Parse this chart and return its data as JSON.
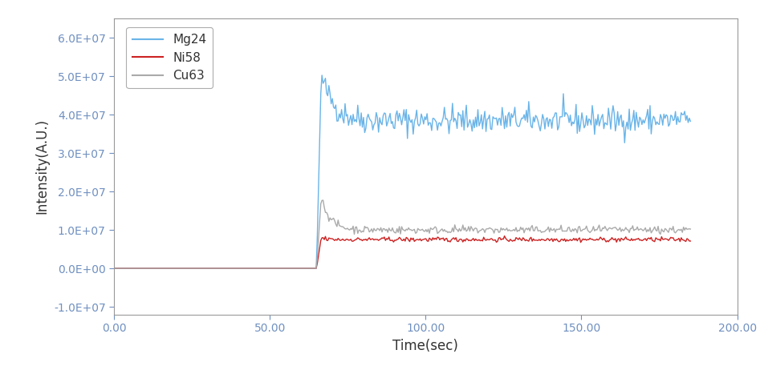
{
  "title": "",
  "xlabel": "Time(sec)",
  "ylabel": "Intensity(A.U.)",
  "xlim": [
    0,
    200
  ],
  "ylim": [
    -12000000.0,
    65000000.0
  ],
  "xticks": [
    0.0,
    50.0,
    100.0,
    150.0,
    200.0
  ],
  "xtick_labels": [
    "0.00",
    "50.00",
    "100.00",
    "150.00",
    "200.00"
  ],
  "yticks": [
    -10000000.0,
    0,
    10000000.0,
    20000000.0,
    30000000.0,
    40000000.0,
    50000000.0,
    60000000.0
  ],
  "ytick_labels": [
    "-1.0E+07",
    "0.0E+00",
    "1.0E+07",
    "2.0E+07",
    "3.0E+07",
    "4.0E+07",
    "5.0E+07",
    "6.0E+07"
  ],
  "legend_labels": [
    "Mg24",
    "Ni58",
    "Cu63"
  ],
  "line_colors": [
    "#6ab4e8",
    "#cc2222",
    "#aaaaaa"
  ],
  "laser_on_time": 65.0,
  "data_end_time": 185.0,
  "noise_seed": 42,
  "mg24_baseline": 0,
  "mg24_peak": 50000000.0,
  "mg24_steady": 38500000.0,
  "ni58_baseline": 0,
  "ni58_peak": 8000000.0,
  "ni58_steady": 7500000.0,
  "cu63_baseline": 0,
  "cu63_peak": 18500000.0,
  "cu63_steady": 10000000.0,
  "background_color": "#ffffff",
  "axis_color": "#999999",
  "font_color": "#5a7ab5",
  "tick_label_color": "#7090c0",
  "label_color": "#333333",
  "figsize": [
    9.47,
    4.62
  ],
  "dpi": 100,
  "n_points": 500
}
